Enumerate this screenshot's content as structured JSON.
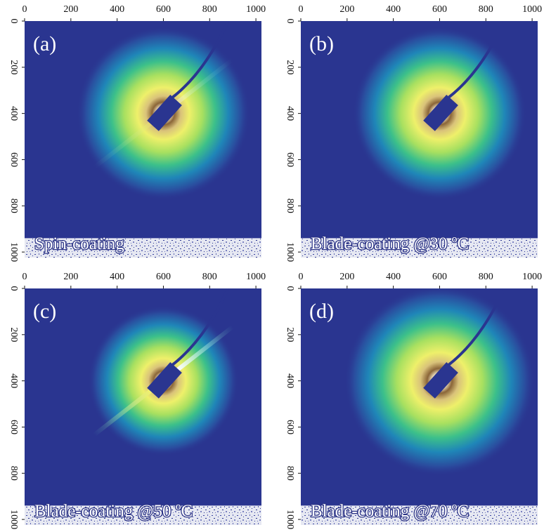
{
  "axes": {
    "xlim": [
      0,
      1024
    ],
    "ylim": [
      0,
      1024
    ],
    "xticks": [
      0,
      200,
      400,
      600,
      800,
      1000
    ],
    "yticks": [
      0,
      200,
      400,
      600,
      800,
      1000
    ]
  },
  "panels": [
    {
      "label": "(a)",
      "caption": "Spin-coating"
    },
    {
      "label": "(b)",
      "caption": "Blade-coating @30 ºC"
    },
    {
      "label": "(c)",
      "caption": "Blade-coating @50 ºC"
    },
    {
      "label": "(d)",
      "caption": "Blade-coating @70 ºC"
    }
  ]
}
